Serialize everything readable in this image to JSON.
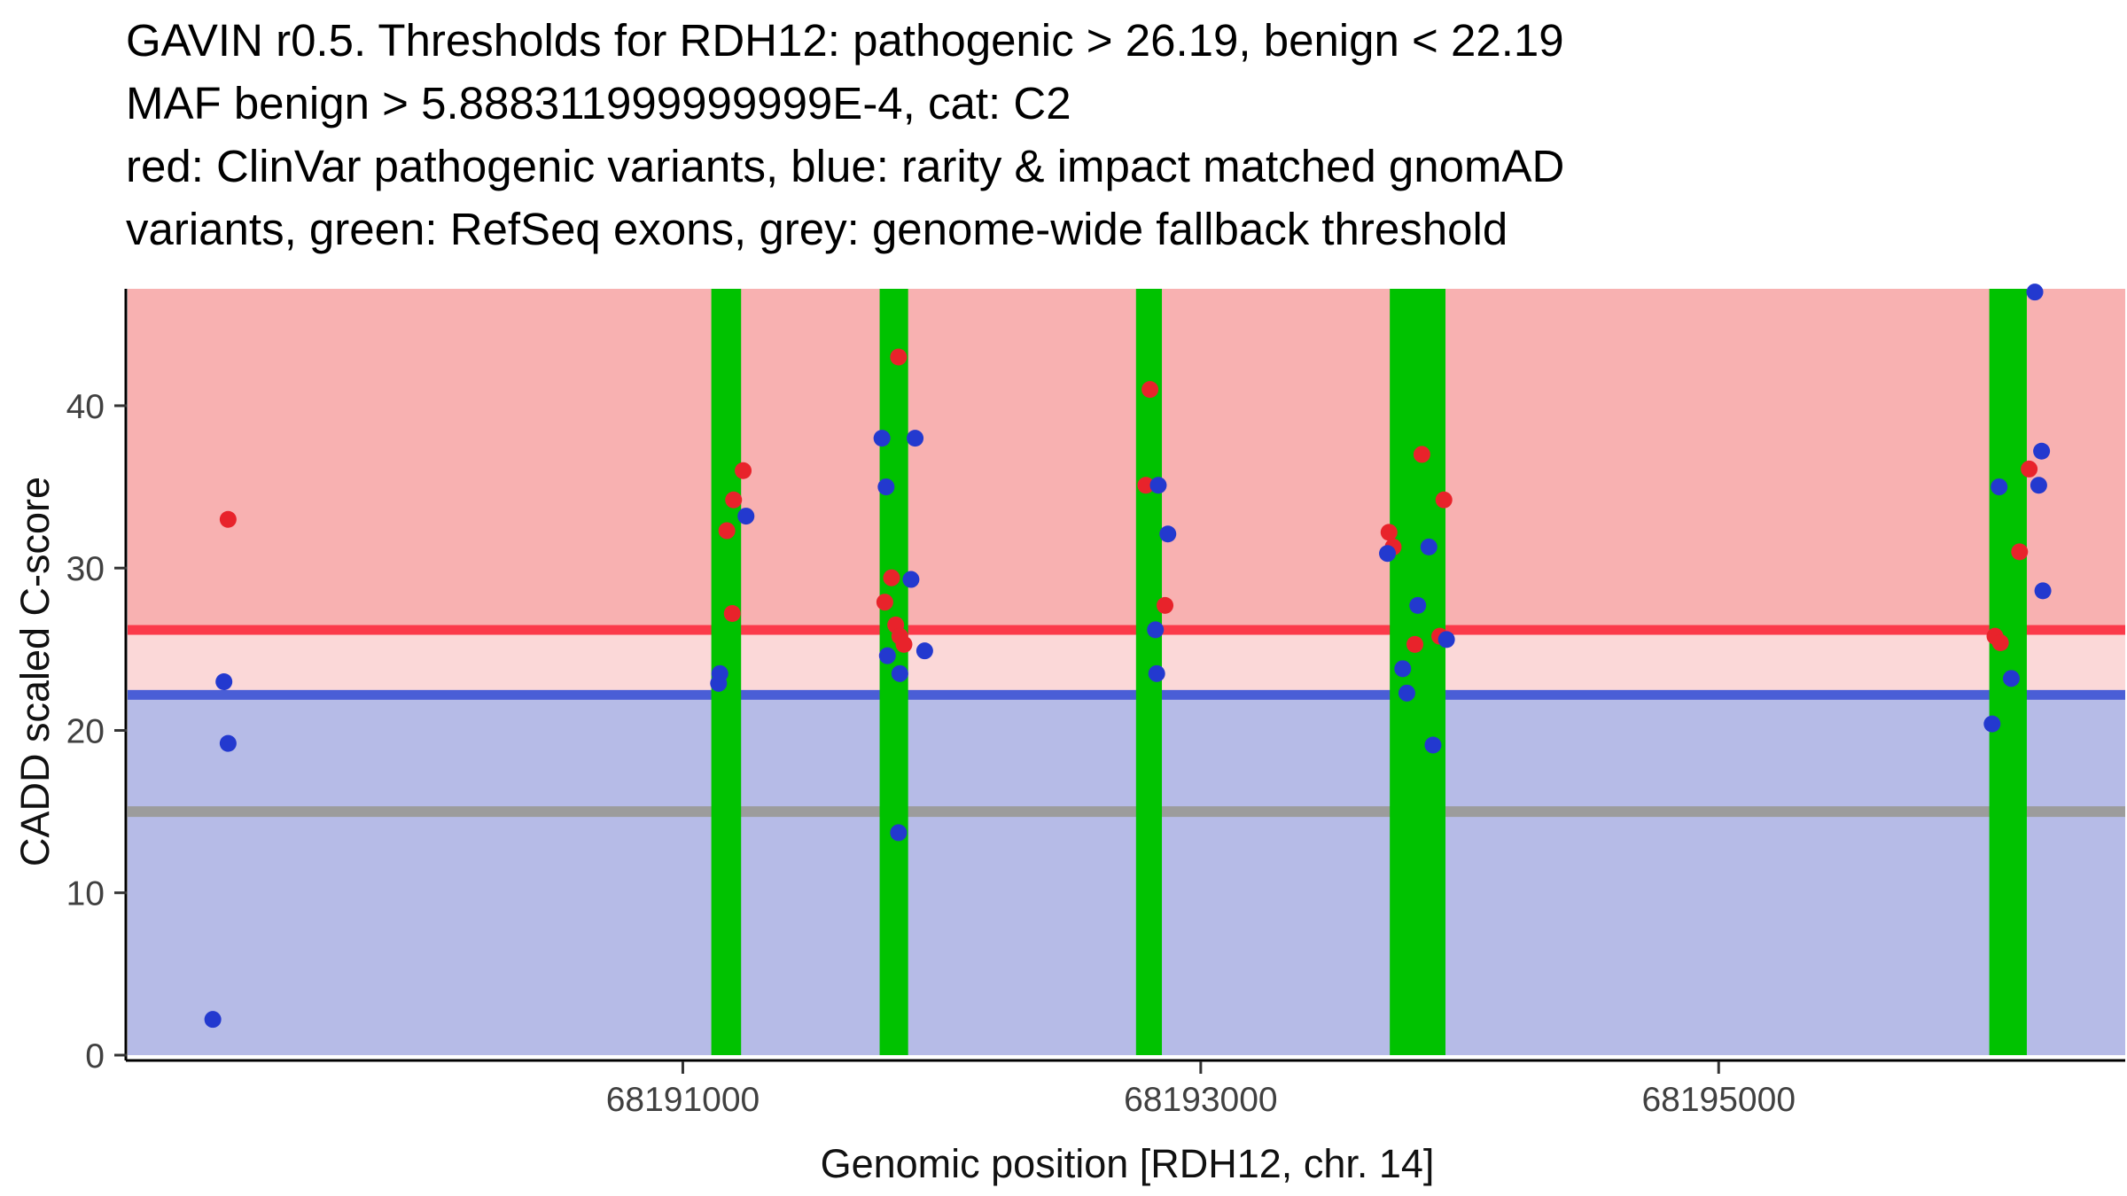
{
  "chart_data": {
    "type": "scatter",
    "title_lines": [
      "GAVIN r0.5. Thresholds for RDH12: pathogenic > 26.19, benign < 22.19",
      "MAF benign > 5.888311999999999E-4, cat: C2",
      "red: ClinVar pathogenic variants, blue: rarity & impact matched gnomAD",
      "variants, green: RefSeq exons, grey: genome-wide fallback threshold"
    ],
    "xlabel": "Genomic position [RDH12, chr. 14]",
    "ylabel": "CADD scaled C-score",
    "xlim": [
      68188856,
      68196570
    ],
    "ylim": [
      0,
      47.2
    ],
    "x_ticks": [
      68191000,
      68193000,
      68195000
    ],
    "y_ticks": [
      0,
      10,
      20,
      30,
      40
    ],
    "grid": false,
    "legend": "none",
    "gene": "RDH12",
    "chromosome": "14",
    "category": "C2",
    "maf_benign": "5.888311999999999E-4",
    "thresholds": {
      "pathogenic": 26.19,
      "benign": 22.19,
      "genome_wide_fallback": 15
    },
    "exons": [
      [
        68191110,
        68191225
      ],
      [
        68191760,
        68191870
      ],
      [
        68192750,
        68192850
      ],
      [
        68193730,
        68193945
      ],
      [
        68196045,
        68196190
      ]
    ],
    "colors": {
      "pathogenic_band": "#f8b1b1",
      "intermediate_band": "#fbd8d8",
      "benign_band": "#b6bbe7",
      "exon": "#00c200",
      "pathogenic_line": "#fb3a4a",
      "benign_line": "#4a5ed6",
      "fallback_line": "#9c9c9c",
      "axis": "#000000",
      "tick": "#333333",
      "tick_label": "#404040"
    },
    "series": [
      {
        "name": "ClinVar pathogenic variants",
        "color": "#e8232b",
        "points": [
          [
            68189244,
            33.0
          ],
          [
            68191170,
            32.3
          ],
          [
            68191191,
            27.2
          ],
          [
            68191196,
            34.2
          ],
          [
            68191233,
            36.0
          ],
          [
            68191780,
            27.9
          ],
          [
            68191806,
            29.4
          ],
          [
            68191822,
            26.5
          ],
          [
            68191833,
            43.0
          ],
          [
            68191838,
            25.8
          ],
          [
            68191854,
            25.3
          ],
          [
            68192788,
            35.1
          ],
          [
            68192804,
            41.0
          ],
          [
            68192862,
            27.7
          ],
          [
            68193727,
            32.2
          ],
          [
            68193743,
            31.3
          ],
          [
            68193827,
            25.3
          ],
          [
            68193854,
            37.0
          ],
          [
            68193923,
            25.8
          ],
          [
            68193939,
            34.2
          ],
          [
            68196067,
            25.8
          ],
          [
            68196088,
            25.4
          ],
          [
            68196162,
            31.0
          ],
          [
            68196199,
            36.1
          ]
        ]
      },
      {
        "name": "rarity & impact matched gnomAD variants",
        "color": "#2339cf",
        "points": [
          [
            68189185,
            2.2
          ],
          [
            68189228,
            23.0
          ],
          [
            68189244,
            19.2
          ],
          [
            68191138,
            22.9
          ],
          [
            68191143,
            23.5
          ],
          [
            68191244,
            33.2
          ],
          [
            68191769,
            38.0
          ],
          [
            68191785,
            35.0
          ],
          [
            68191790,
            24.6
          ],
          [
            68191833,
            13.7
          ],
          [
            68191838,
            23.5
          ],
          [
            68191881,
            29.3
          ],
          [
            68191897,
            38.0
          ],
          [
            68191934,
            24.9
          ],
          [
            68192825,
            26.2
          ],
          [
            68192830,
            23.5
          ],
          [
            68192836,
            35.1
          ],
          [
            68192873,
            32.1
          ],
          [
            68193721,
            30.9
          ],
          [
            68193780,
            23.8
          ],
          [
            68193796,
            22.3
          ],
          [
            68193838,
            27.7
          ],
          [
            68193881,
            31.3
          ],
          [
            68193897,
            19.1
          ],
          [
            68193949,
            25.6
          ],
          [
            68196056,
            20.4
          ],
          [
            68196083,
            35.0
          ],
          [
            68196130,
            23.2
          ],
          [
            68196221,
            47.0
          ],
          [
            68196236,
            35.1
          ],
          [
            68196247,
            37.2
          ],
          [
            68196252,
            28.6
          ]
        ]
      }
    ]
  }
}
